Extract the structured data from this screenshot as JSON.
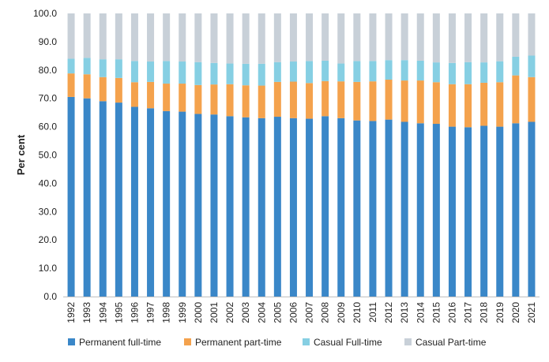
{
  "chart_data": {
    "type": "bar",
    "stacked": true,
    "title": "",
    "xlabel": "",
    "ylabel": "Per cent",
    "ylim": [
      0,
      100
    ],
    "yticks": [
      "0.0",
      "10.0",
      "20.0",
      "30.0",
      "40.0",
      "50.0",
      "60.0",
      "70.0",
      "80.0",
      "90.0",
      "100.0"
    ],
    "grid": false,
    "legend_position": "bottom",
    "categories": [
      "1992",
      "1993",
      "1994",
      "1995",
      "1996",
      "1997",
      "1998",
      "1999",
      "2000",
      "2001",
      "2002",
      "2003",
      "2004",
      "2005",
      "2006",
      "2007",
      "2008",
      "2009",
      "2010",
      "2011",
      "2012",
      "2013",
      "2014",
      "2015",
      "2016",
      "2017",
      "2018",
      "2019",
      "2020",
      "2021"
    ],
    "series": [
      {
        "name": "Permanent full-time",
        "color": "#3a87c8",
        "values": [
          70.5,
          70.0,
          69.0,
          68.5,
          67.0,
          66.5,
          65.5,
          65.3,
          64.5,
          64.3,
          63.7,
          63.3,
          63.0,
          63.5,
          63.0,
          62.8,
          63.7,
          63.0,
          62.2,
          62.0,
          62.5,
          61.7,
          61.2,
          61.0,
          60.0,
          59.8,
          60.3,
          60.0,
          61.2,
          61.7
        ]
      },
      {
        "name": "Permanent part-time",
        "color": "#f4a24d",
        "values": [
          8.3,
          8.5,
          8.5,
          8.7,
          8.7,
          9.3,
          9.7,
          9.9,
          10.2,
          10.6,
          11.3,
          11.3,
          11.5,
          12.3,
          12.9,
          12.6,
          12.4,
          13.0,
          13.6,
          14.0,
          14.1,
          14.6,
          15.1,
          14.7,
          15.0,
          15.2,
          15.2,
          15.7,
          16.9,
          15.8
        ]
      },
      {
        "name": "Casual Full-time",
        "color": "#86cfe3",
        "values": [
          5.2,
          5.8,
          6.3,
          6.6,
          7.5,
          7.2,
          8.0,
          7.8,
          8.1,
          7.6,
          7.3,
          7.6,
          7.7,
          7.0,
          7.1,
          7.8,
          7.2,
          6.3,
          7.4,
          7.2,
          6.9,
          7.2,
          7.0,
          7.0,
          7.5,
          7.8,
          7.2,
          7.4,
          6.6,
          7.6
        ]
      },
      {
        "name": "Casual Part-time",
        "color": "#c8d0d8",
        "values": [
          16.0,
          15.7,
          16.2,
          16.2,
          16.8,
          17.0,
          16.8,
          17.0,
          17.2,
          17.5,
          17.7,
          17.8,
          17.8,
          17.2,
          17.0,
          16.8,
          16.7,
          17.7,
          16.8,
          16.8,
          16.5,
          16.5,
          16.7,
          17.3,
          17.5,
          17.2,
          17.3,
          16.9,
          15.3,
          14.9
        ]
      }
    ]
  }
}
